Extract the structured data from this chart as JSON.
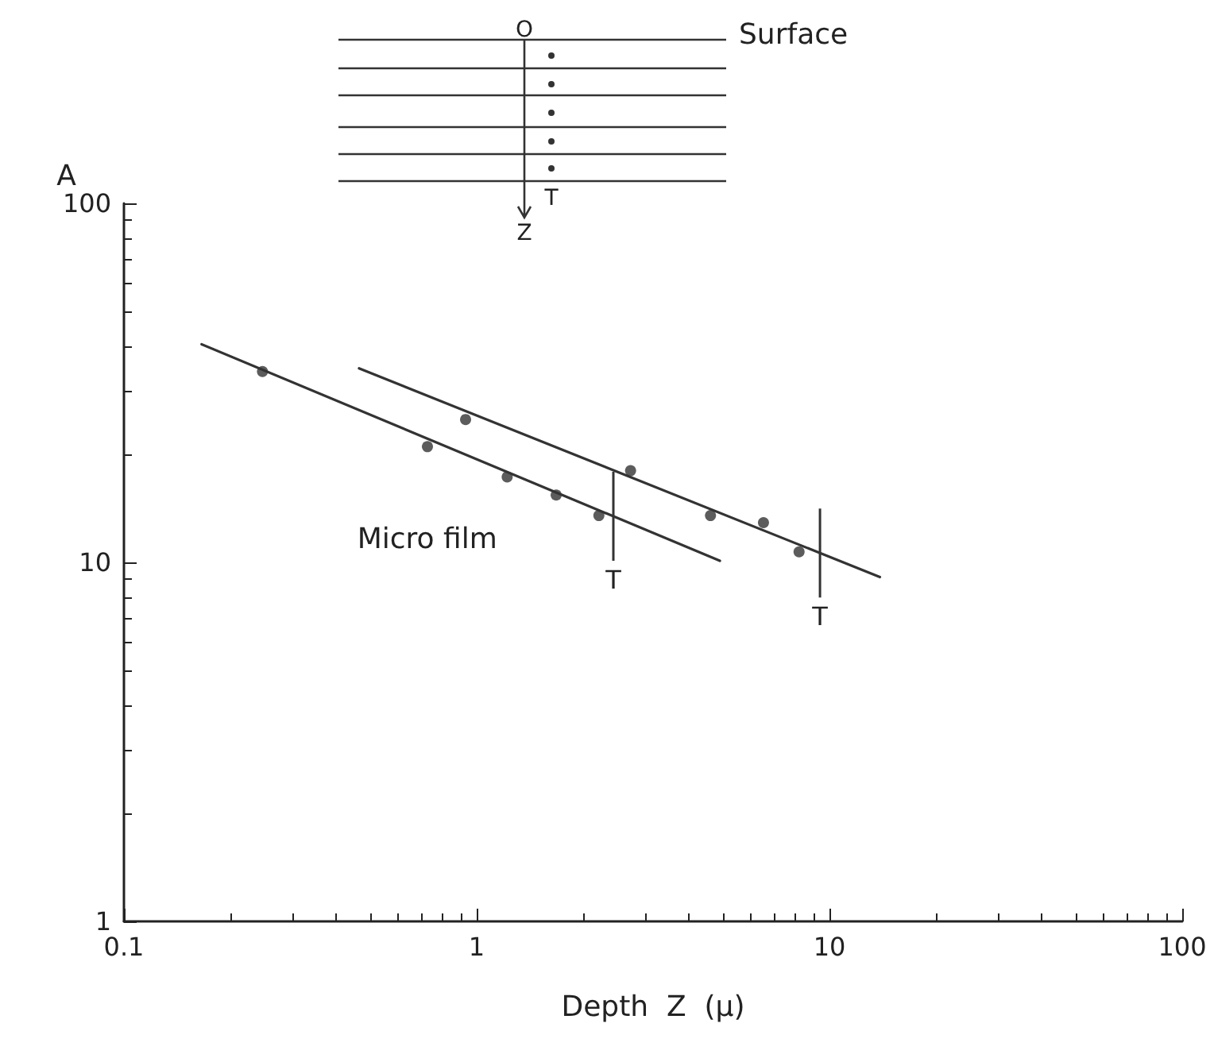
{
  "chart_data": {
    "type": "scatter",
    "xlabel": "Depth  Z  (μ)",
    "ylabel": "A",
    "log": "xy",
    "grid": false,
    "legend": false,
    "marker": "circle",
    "xlim": [
      0.1,
      100
    ],
    "xticks": [
      {
        "value": 0.1,
        "label": "0.1"
      },
      1,
      10,
      100
    ],
    "ylim": [
      1,
      100
    ],
    "yticks": [
      1,
      10,
      100
    ],
    "series": [
      {
        "color": "#333333",
        "x": [
          0.247,
          0.725,
          1.22,
          1.68,
          2.22
        ],
        "values": [
          34,
          21,
          17.3,
          15.4,
          13.5
        ]
      },
      {
        "color": "#333333",
        "x": [
          0.93,
          2.73,
          4.6,
          6.5,
          8.2
        ],
        "values": [
          25,
          18,
          13.5,
          12.9,
          10.7
        ]
      },
      {
        "type": "line",
        "name": "Micro film",
        "color": "#333333",
        "marker": "none",
        "x": [
          0.166,
          4.89
        ],
        "values": [
          40.5,
          10.1
        ]
      },
      {
        "type": "line",
        "color": "#333333",
        "marker": "none",
        "x": [
          0.464,
          13.9
        ],
        "values": [
          34.7,
          9.1
        ]
      }
    ],
    "ref_lines": [
      {
        "axis": "x",
        "value": 2.44,
        "label": "T",
        "color": "#333333"
      },
      {
        "axis": "x",
        "value": 9.4,
        "label": "T",
        "color": "#333333"
      }
    ],
    "annotations": [
      "Surface",
      "O",
      "T",
      "Z"
    ]
  }
}
